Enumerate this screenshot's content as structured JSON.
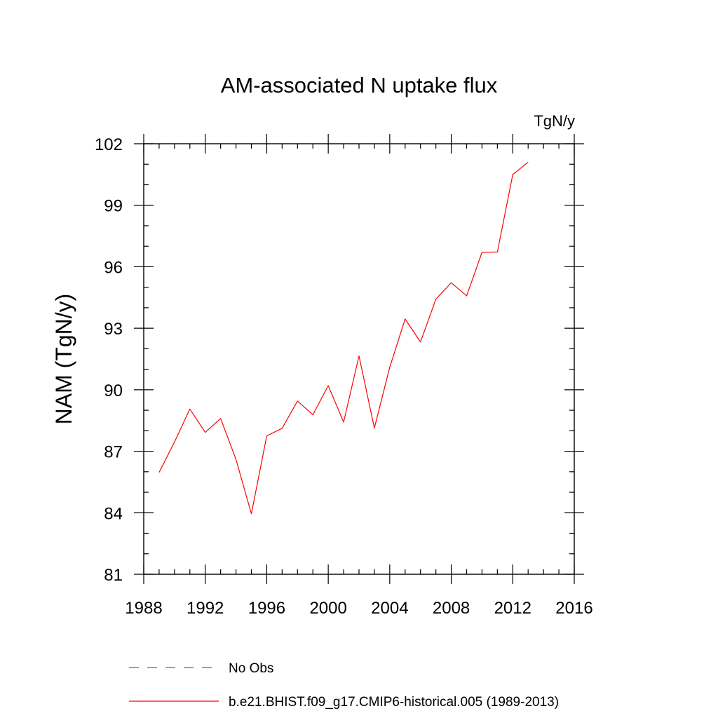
{
  "chart_data": {
    "type": "line",
    "title": "AM-associated N uptake flux",
    "units_label": "TgN/y",
    "ylabel": "NAM  (TgN/y)",
    "xlabel": "",
    "xlim": [
      1988,
      2016
    ],
    "ylim": [
      81,
      102
    ],
    "xticks": [
      1988,
      1992,
      1996,
      2000,
      2004,
      2008,
      2012,
      2016
    ],
    "xtick_labels": [
      "1988",
      "1992",
      "1996",
      "2000",
      "2004",
      "2008",
      "2012",
      "2016"
    ],
    "yticks": [
      81,
      84,
      87,
      90,
      93,
      96,
      99,
      102
    ],
    "ytick_labels": [
      "81",
      "84",
      "87",
      "90",
      "93",
      "96",
      "99",
      "102"
    ],
    "x_minor_step": 1,
    "y_minor_step": 1,
    "grid": false,
    "legend_position": "bottom",
    "series": [
      {
        "name": "b.e21.BHIST.f09_g17.CMIP6-historical.005 (1989-2013)",
        "color": "#ff0000",
        "dash": "solid",
        "x": [
          1989,
          1990,
          1991,
          1992,
          1993,
          1994,
          1995,
          1996,
          1997,
          1998,
          1999,
          2000,
          2001,
          2002,
          2003,
          2004,
          2005,
          2006,
          2007,
          2008,
          2009,
          2010,
          2011,
          2012,
          2013
        ],
        "values": [
          85.97,
          87.45,
          89.06,
          87.92,
          88.6,
          86.6,
          83.95,
          87.75,
          88.12,
          89.45,
          88.78,
          90.2,
          88.42,
          91.65,
          88.13,
          91.1,
          93.45,
          92.33,
          94.42,
          95.22,
          94.58,
          96.7,
          96.72,
          100.5,
          101.1
        ]
      },
      {
        "name": "No Obs",
        "color": "#5b5bd6",
        "dash": "dashed",
        "x": [],
        "values": []
      }
    ]
  }
}
